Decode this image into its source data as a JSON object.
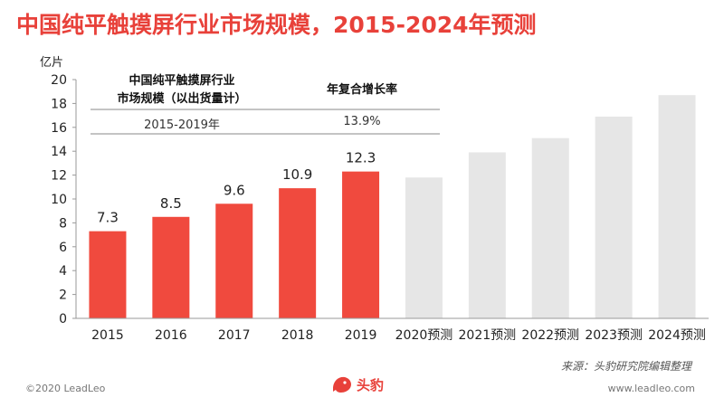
{
  "header": {
    "title": "中国纯平触摸屏行业市场规模，2015-2024年预测",
    "unit": "亿片"
  },
  "cagr_table": {
    "col1_header_line1": "中国纯平触摸屏行业",
    "col1_header_line2": "市场规模（以出货量计）",
    "col2_header": "年复合增长率",
    "period": "2015-2019年",
    "rate": "13.9%"
  },
  "footer": {
    "source": "来源：头豹研究院编辑整理",
    "copyright": "©2020 LeadLeo",
    "url": "www.leadleo.com",
    "logo_text": "头豹"
  },
  "colors": {
    "actual": "#f04a3e",
    "forecast": "#e6e6e6",
    "title": "#e8413a"
  },
  "chart_data": {
    "type": "bar",
    "categories": [
      "2015",
      "2016",
      "2017",
      "2018",
      "2019",
      "2020预测",
      "2021预测",
      "2022预测",
      "2023预测",
      "2024预测"
    ],
    "values": [
      7.3,
      8.5,
      9.6,
      10.9,
      12.3,
      11.8,
      13.9,
      15.1,
      16.9,
      18.7
    ],
    "is_forecast": [
      false,
      false,
      false,
      false,
      false,
      true,
      true,
      true,
      true,
      true
    ],
    "data_labels": [
      "7.3",
      "8.5",
      "9.6",
      "10.9",
      "12.3",
      null,
      null,
      null,
      null,
      null
    ],
    "yticks": [
      "0",
      "2",
      "4",
      "6",
      "8",
      "10",
      "12",
      "14",
      "16",
      "18",
      "20"
    ],
    "ylim": [
      0,
      20
    ],
    "ylabel": "亿片",
    "xlabel": "",
    "grid": false,
    "legend": "none"
  }
}
